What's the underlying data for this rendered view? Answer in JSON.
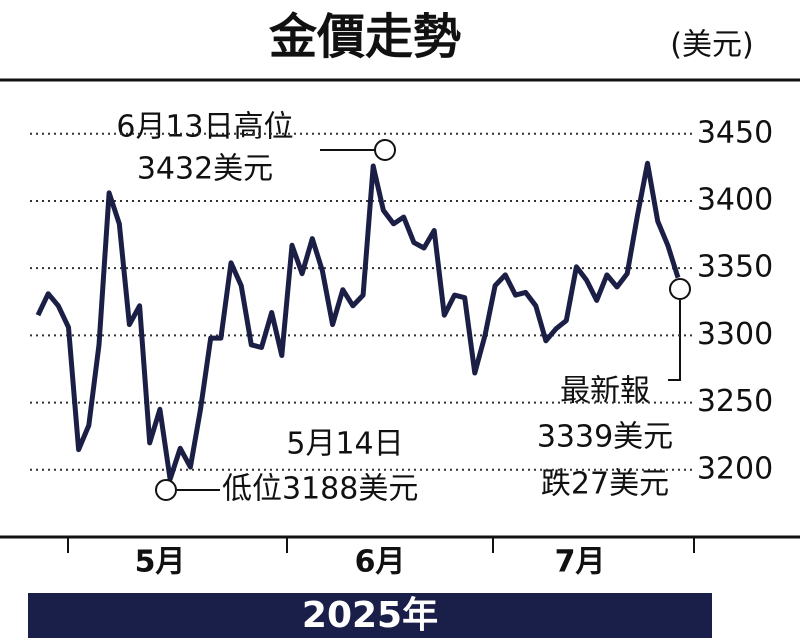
{
  "chart_data": {
    "type": "line",
    "title": "金價走勢",
    "unit": "(美元)",
    "year": "2025年",
    "months": [
      "5月",
      "6月",
      "7月"
    ],
    "color": "#1c1f45",
    "values": [
      3315,
      3331,
      3322,
      3306,
      3215,
      3233,
      3293,
      3406,
      3383,
      3308,
      3322,
      3220,
      3245,
      3193,
      3216,
      3202,
      3245,
      3298,
      3298,
      3354,
      3337,
      3293,
      3291,
      3317,
      3285,
      3367,
      3346,
      3372,
      3348,
      3308,
      3334,
      3322,
      3330,
      3426,
      3393,
      3383,
      3388,
      3369,
      3365,
      3378,
      3315,
      3330,
      3328,
      3272,
      3300,
      3337,
      3345,
      3330,
      3332,
      3322,
      3296,
      3305,
      3311,
      3351,
      3341,
      3326,
      3345,
      3336,
      3346,
      3389,
      3428,
      3385,
      3367,
      3343
    ],
    "ylim": [
      3150,
      3490
    ],
    "yticks": [
      3200,
      3250,
      3300,
      3350,
      3400,
      3450
    ],
    "grid": true,
    "annotations": {
      "high": [
        "6月13日高位",
        "3432美元"
      ],
      "low": [
        "5月14日",
        "低位3188美元"
      ],
      "latest": [
        "最新報",
        "3339美元",
        "跌27美元"
      ]
    }
  }
}
